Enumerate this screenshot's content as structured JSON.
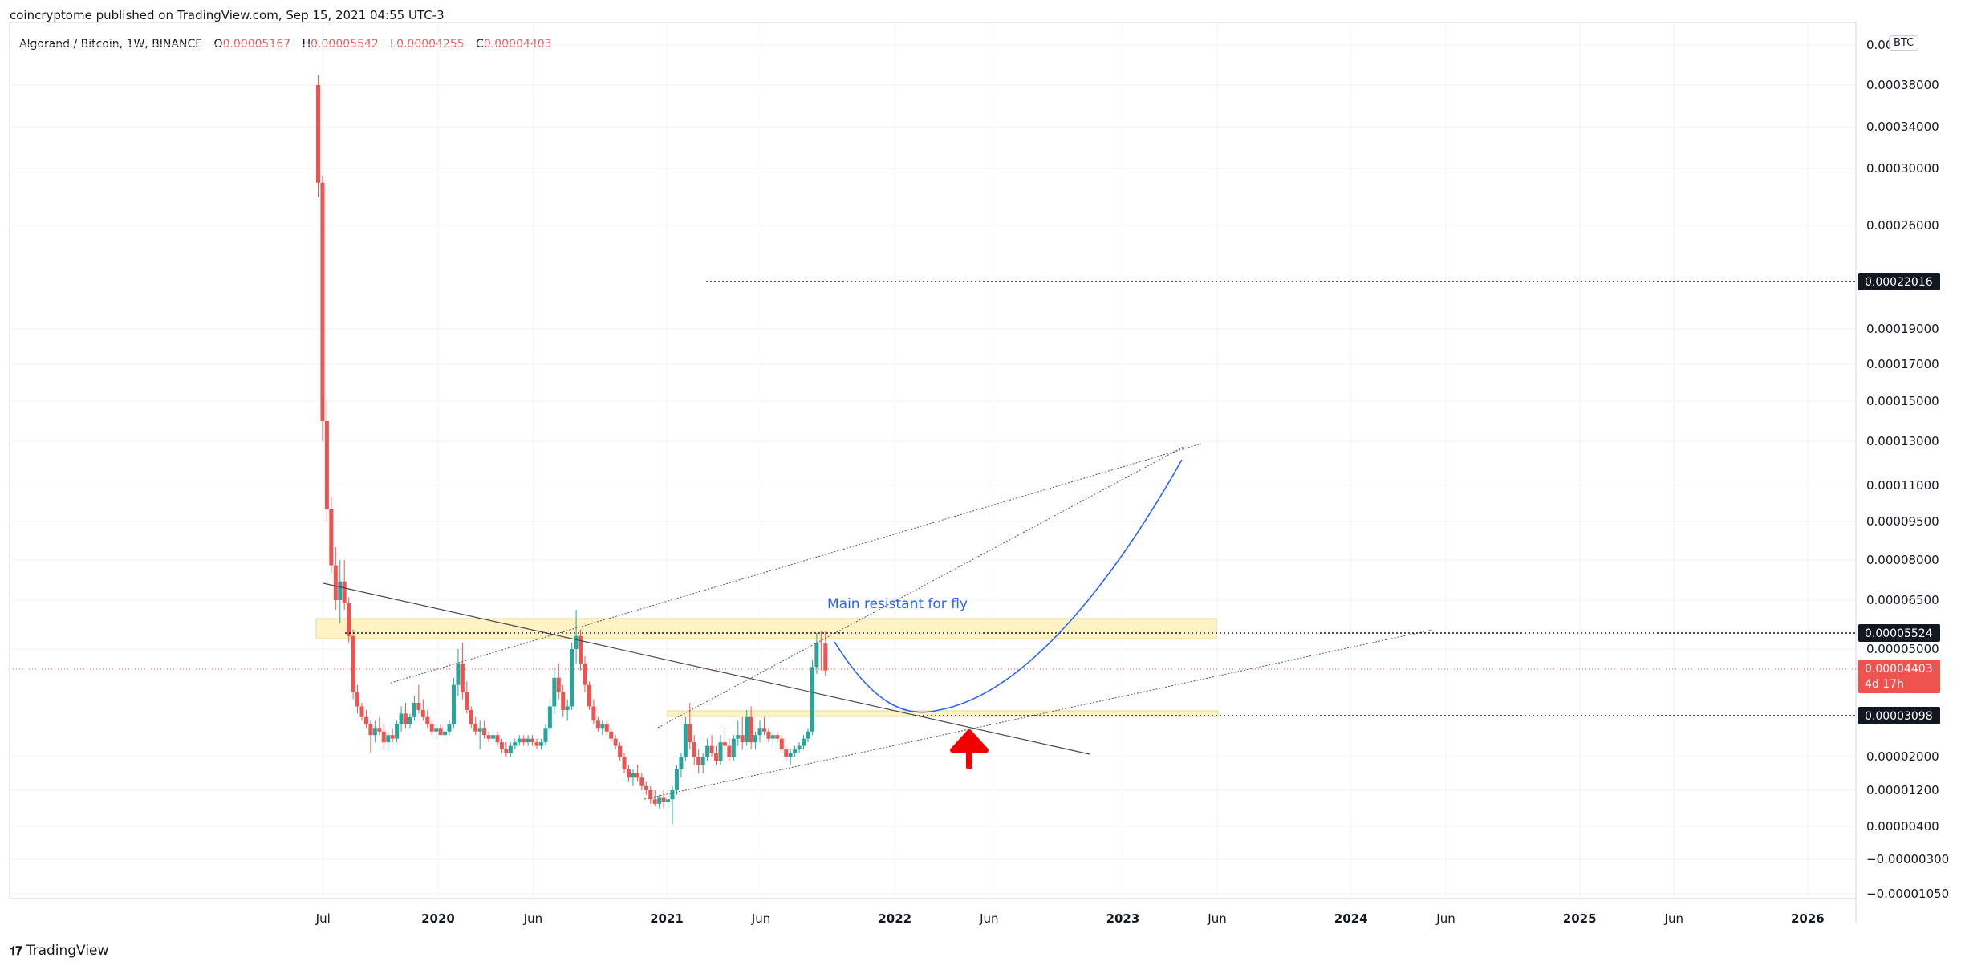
{
  "header": {
    "published": "coincryptome published on TradingView.com, Sep 15, 2021 04:55 UTC-3"
  },
  "legend": {
    "symbol": "Algorand / Bitcoin, 1W, BINANCE",
    "o_label": "O",
    "o": "0.00005167",
    "h_label": "H",
    "h": "0.00005542",
    "l_label": "L",
    "l": "0.00004255",
    "c_label": "C",
    "c": "0.00004403"
  },
  "currency_badge": "BTC",
  "footer": {
    "brand": "TradingView"
  },
  "colors": {
    "up": "#26a69a",
    "down": "#ef5350",
    "curve": "#2962ff",
    "zone": "#fff3c4",
    "arrow": "#f00000"
  },
  "chart_data": {
    "type": "candlestick",
    "symbol": "ALGO/BTC",
    "interval": "1W",
    "price_axis_labels": [
      "0.00042000",
      "0.00038000",
      "0.00034000",
      "0.00030000",
      "0.00026000",
      "0.00019000",
      "0.00017000",
      "0.00015000",
      "0.00013000",
      "0.00011000",
      "0.00009500",
      "0.00008000",
      "0.00006500",
      "0.00005000",
      "0.00002000",
      "0.00001200",
      "0.00000400",
      "−0.00000300",
      "−0.00001050"
    ],
    "price_axis_top_label": "0.0004",
    "time_axis_labels": [
      "Jul",
      "2020",
      "Jun",
      "2021",
      "Jun",
      "2022",
      "Jun",
      "2023",
      "Jun",
      "2024",
      "Jun",
      "2025",
      "Jun",
      "2026"
    ],
    "marked_levels": [
      {
        "value": "0.00022016"
      },
      {
        "value": "0.00005524"
      },
      {
        "value": "0.00003098"
      }
    ],
    "last_price": {
      "value": "0.00004403",
      "countdown": "4d 17h"
    },
    "annotation": "Main resistant for fly",
    "candles": [
      {
        "t": "2019-06-23",
        "o": 0.00038,
        "h": 0.00039,
        "l": 0.00028,
        "c": 0.00029
      },
      {
        "t": "2019-06-30",
        "o": 0.00029,
        "h": 0.000295,
        "l": 0.00013,
        "c": 0.00014
      },
      {
        "t": "2019-07-07",
        "o": 0.00014,
        "h": 0.00015,
        "l": 9.5e-05,
        "c": 0.0001
      },
      {
        "t": "2019-07-14",
        "o": 0.0001,
        "h": 0.000105,
        "l": 7.5e-05,
        "c": 7.8e-05
      },
      {
        "t": "2019-07-21",
        "o": 7.8e-05,
        "h": 8.5e-05,
        "l": 6.2e-05,
        "c": 6.5e-05
      },
      {
        "t": "2019-07-28",
        "o": 6.5e-05,
        "h": 8e-05,
        "l": 5.8e-05,
        "c": 7.2e-05
      },
      {
        "t": "2019-08-04",
        "o": 7.2e-05,
        "h": 8e-05,
        "l": 6.2e-05,
        "c": 6.4e-05
      },
      {
        "t": "2019-08-11",
        "o": 6.4e-05,
        "h": 6.6e-05,
        "l": 5.2e-05,
        "c": 5.4e-05
      },
      {
        "t": "2019-08-18",
        "o": 5.4e-05,
        "h": 5.6e-05,
        "l": 3.6e-05,
        "c": 3.8e-05
      },
      {
        "t": "2019-08-25",
        "o": 3.8e-05,
        "h": 4e-05,
        "l": 3.2e-05,
        "c": 3.4e-05
      },
      {
        "t": "2019-09-01",
        "o": 3.4e-05,
        "h": 3.5e-05,
        "l": 3e-05,
        "c": 3.1e-05
      },
      {
        "t": "2019-09-08",
        "o": 3.1e-05,
        "h": 3.3e-05,
        "l": 2.8e-05,
        "c": 2.9e-05
      },
      {
        "t": "2019-09-15",
        "o": 2.9e-05,
        "h": 3e-05,
        "l": 2.1e-05,
        "c": 2.6e-05
      },
      {
        "t": "2019-09-22",
        "o": 2.6e-05,
        "h": 3e-05,
        "l": 2.4e-05,
        "c": 2.8e-05
      },
      {
        "t": "2019-09-29",
        "o": 2.8e-05,
        "h": 3.1e-05,
        "l": 2.6e-05,
        "c": 2.7e-05
      },
      {
        "t": "2019-10-06",
        "o": 2.7e-05,
        "h": 2.9e-05,
        "l": 2.2e-05,
        "c": 2.4e-05
      },
      {
        "t": "2019-10-13",
        "o": 2.4e-05,
        "h": 2.7e-05,
        "l": 2.2e-05,
        "c": 2.6e-05
      },
      {
        "t": "2019-10-20",
        "o": 2.6e-05,
        "h": 2.8e-05,
        "l": 2.4e-05,
        "c": 2.5e-05
      },
      {
        "t": "2019-10-27",
        "o": 2.5e-05,
        "h": 3e-05,
        "l": 2.4e-05,
        "c": 2.9e-05
      },
      {
        "t": "2019-11-03",
        "o": 2.9e-05,
        "h": 3.4e-05,
        "l": 2.7e-05,
        "c": 3.2e-05
      },
      {
        "t": "2019-11-10",
        "o": 3.2e-05,
        "h": 3.5e-05,
        "l": 2.8e-05,
        "c": 2.9e-05
      },
      {
        "t": "2019-11-17",
        "o": 2.9e-05,
        "h": 3.2e-05,
        "l": 2.8e-05,
        "c": 3.1e-05
      },
      {
        "t": "2019-11-24",
        "o": 3.1e-05,
        "h": 3.7e-05,
        "l": 3e-05,
        "c": 3.5e-05
      },
      {
        "t": "2019-12-01",
        "o": 3.5e-05,
        "h": 4e-05,
        "l": 3.2e-05,
        "c": 3.3e-05
      },
      {
        "t": "2019-12-08",
        "o": 3.3e-05,
        "h": 3.6e-05,
        "l": 3e-05,
        "c": 3.1e-05
      },
      {
        "t": "2019-12-15",
        "o": 3.1e-05,
        "h": 3.3e-05,
        "l": 2.8e-05,
        "c": 2.9e-05
      },
      {
        "t": "2019-12-22",
        "o": 2.9e-05,
        "h": 3e-05,
        "l": 2.6e-05,
        "c": 2.7e-05
      },
      {
        "t": "2019-12-29",
        "o": 2.7e-05,
        "h": 2.9e-05,
        "l": 2.5e-05,
        "c": 2.8e-05
      },
      {
        "t": "2020-01-05",
        "o": 2.8e-05,
        "h": 2.9e-05,
        "l": 2.6e-05,
        "c": 2.6e-05
      },
      {
        "t": "2020-01-12",
        "o": 2.6e-05,
        "h": 2.8e-05,
        "l": 2.5e-05,
        "c": 2.7e-05
      },
      {
        "t": "2020-01-19",
        "o": 2.7e-05,
        "h": 3e-05,
        "l": 2.6e-05,
        "c": 2.9e-05
      },
      {
        "t": "2020-01-26",
        "o": 2.9e-05,
        "h": 4.2e-05,
        "l": 2.8e-05,
        "c": 4e-05
      },
      {
        "t": "2020-02-02",
        "o": 4e-05,
        "h": 5e-05,
        "l": 3.7e-05,
        "c": 4.6e-05
      },
      {
        "t": "2020-02-09",
        "o": 4.6e-05,
        "h": 5.2e-05,
        "l": 3.6e-05,
        "c": 3.8e-05
      },
      {
        "t": "2020-02-16",
        "o": 3.8e-05,
        "h": 4.1e-05,
        "l": 3.2e-05,
        "c": 3.3e-05
      },
      {
        "t": "2020-02-23",
        "o": 3.3e-05,
        "h": 3.4e-05,
        "l": 2.8e-05,
        "c": 2.9e-05
      },
      {
        "t": "2020-03-01",
        "o": 2.9e-05,
        "h": 3.1e-05,
        "l": 2.6e-05,
        "c": 2.7e-05
      },
      {
        "t": "2020-03-08",
        "o": 2.7e-05,
        "h": 3e-05,
        "l": 2.2e-05,
        "c": 2.8e-05
      },
      {
        "t": "2020-03-15",
        "o": 2.8e-05,
        "h": 3e-05,
        "l": 2.5e-05,
        "c": 2.6e-05
      },
      {
        "t": "2020-03-22",
        "o": 2.6e-05,
        "h": 2.7e-05,
        "l": 2.4e-05,
        "c": 2.5e-05
      },
      {
        "t": "2020-03-29",
        "o": 2.5e-05,
        "h": 2.7e-05,
        "l": 2.4e-05,
        "c": 2.6e-05
      },
      {
        "t": "2020-04-05",
        "o": 2.6e-05,
        "h": 2.7e-05,
        "l": 2.3e-05,
        "c": 2.4e-05
      },
      {
        "t": "2020-04-12",
        "o": 2.4e-05,
        "h": 2.5e-05,
        "l": 2.1e-05,
        "c": 2.2e-05
      },
      {
        "t": "2020-04-19",
        "o": 2.2e-05,
        "h": 2.4e-05,
        "l": 2e-05,
        "c": 2.1e-05
      },
      {
        "t": "2020-04-26",
        "o": 2.1e-05,
        "h": 2.4e-05,
        "l": 2e-05,
        "c": 2.3e-05
      },
      {
        "t": "2020-05-03",
        "o": 2.3e-05,
        "h": 2.5e-05,
        "l": 2.2e-05,
        "c": 2.4e-05
      },
      {
        "t": "2020-05-10",
        "o": 2.4e-05,
        "h": 2.6e-05,
        "l": 2.3e-05,
        "c": 2.5e-05
      },
      {
        "t": "2020-05-17",
        "o": 2.5e-05,
        "h": 2.6e-05,
        "l": 2.3e-05,
        "c": 2.4e-05
      },
      {
        "t": "2020-05-24",
        "o": 2.4e-05,
        "h": 2.6e-05,
        "l": 2.3e-05,
        "c": 2.5e-05
      },
      {
        "t": "2020-05-31",
        "o": 2.5e-05,
        "h": 2.6e-05,
        "l": 2.3e-05,
        "c": 2.4e-05
      },
      {
        "t": "2020-06-07",
        "o": 2.4e-05,
        "h": 2.5e-05,
        "l": 2.2e-05,
        "c": 2.3e-05
      },
      {
        "t": "2020-06-14",
        "o": 2.3e-05,
        "h": 2.5e-05,
        "l": 2.2e-05,
        "c": 2.4e-05
      },
      {
        "t": "2020-06-21",
        "o": 2.4e-05,
        "h": 2.9e-05,
        "l": 2.3e-05,
        "c": 2.8e-05
      },
      {
        "t": "2020-06-28",
        "o": 2.8e-05,
        "h": 3.6e-05,
        "l": 2.7e-05,
        "c": 3.4e-05
      },
      {
        "t": "2020-07-05",
        "o": 3.4e-05,
        "h": 4.5e-05,
        "l": 3.2e-05,
        "c": 4.2e-05
      },
      {
        "t": "2020-07-12",
        "o": 4.2e-05,
        "h": 4.6e-05,
        "l": 3.6e-05,
        "c": 3.8e-05
      },
      {
        "t": "2020-07-19",
        "o": 3.8e-05,
        "h": 4e-05,
        "l": 3.1e-05,
        "c": 3.3e-05
      },
      {
        "t": "2020-07-26",
        "o": 3.3e-05,
        "h": 3.6e-05,
        "l": 3e-05,
        "c": 3.4e-05
      },
      {
        "t": "2020-08-02",
        "o": 3.4e-05,
        "h": 5.2e-05,
        "l": 3.3e-05,
        "c": 5e-05
      },
      {
        "t": "2020-08-09",
        "o": 5e-05,
        "h": 6.2e-05,
        "l": 4.6e-05,
        "c": 5.4e-05
      },
      {
        "t": "2020-08-16",
        "o": 5.4e-05,
        "h": 5.6e-05,
        "l": 4.4e-05,
        "c": 4.6e-05
      },
      {
        "t": "2020-08-23",
        "o": 4.6e-05,
        "h": 4.8e-05,
        "l": 3.8e-05,
        "c": 4e-05
      },
      {
        "t": "2020-08-30",
        "o": 4e-05,
        "h": 4.1e-05,
        "l": 3.3e-05,
        "c": 3.4e-05
      },
      {
        "t": "2020-09-06",
        "o": 3.4e-05,
        "h": 3.6e-05,
        "l": 2.9e-05,
        "c": 3e-05
      },
      {
        "t": "2020-09-13",
        "o": 3e-05,
        "h": 3.1e-05,
        "l": 2.7e-05,
        "c": 2.8e-05
      },
      {
        "t": "2020-09-20",
        "o": 2.8e-05,
        "h": 3e-05,
        "l": 2.6e-05,
        "c": 2.9e-05
      },
      {
        "t": "2020-09-27",
        "o": 2.9e-05,
        "h": 3e-05,
        "l": 2.6e-05,
        "c": 2.7e-05
      },
      {
        "t": "2020-10-04",
        "o": 2.7e-05,
        "h": 2.8e-05,
        "l": 2.4e-05,
        "c": 2.5e-05
      },
      {
        "t": "2020-10-11",
        "o": 2.5e-05,
        "h": 2.6e-05,
        "l": 2.2e-05,
        "c": 2.3e-05
      },
      {
        "t": "2020-10-18",
        "o": 2.3e-05,
        "h": 2.4e-05,
        "l": 1.9e-05,
        "c": 2e-05
      },
      {
        "t": "2020-10-25",
        "o": 2e-05,
        "h": 2.1e-05,
        "l": 1.6e-05,
        "c": 1.7e-05
      },
      {
        "t": "2020-11-01",
        "o": 1.7e-05,
        "h": 1.8e-05,
        "l": 1.4e-05,
        "c": 1.5e-05
      },
      {
        "t": "2020-11-08",
        "o": 1.5e-05,
        "h": 1.7e-05,
        "l": 1.3e-05,
        "c": 1.6e-05
      },
      {
        "t": "2020-11-15",
        "o": 1.6e-05,
        "h": 1.8e-05,
        "l": 1.4e-05,
        "c": 1.5e-05
      },
      {
        "t": "2020-11-22",
        "o": 1.5e-05,
        "h": 1.6e-05,
        "l": 1.2e-05,
        "c": 1.3e-05
      },
      {
        "t": "2020-11-29",
        "o": 1.3e-05,
        "h": 1.4e-05,
        "l": 1.1e-05,
        "c": 1.2e-05
      },
      {
        "t": "2020-12-06",
        "o": 1.2e-05,
        "h": 1.3e-05,
        "l": 9e-06,
        "c": 1e-05
      },
      {
        "t": "2020-12-13",
        "o": 1e-05,
        "h": 1.2e-05,
        "l": 8.5e-06,
        "c": 9e-06
      },
      {
        "t": "2020-12-20",
        "o": 9e-06,
        "h": 1.1e-05,
        "l": 8e-06,
        "c": 1.05e-05
      },
      {
        "t": "2020-12-27",
        "o": 1.05e-05,
        "h": 1.2e-05,
        "l": 8e-06,
        "c": 9.5e-06
      },
      {
        "t": "2021-01-03",
        "o": 9.5e-06,
        "h": 1.1e-05,
        "l": 8e-06,
        "c": 1e-05
      },
      {
        "t": "2021-01-10",
        "o": 1e-05,
        "h": 1.3e-05,
        "l": 4.5e-06,
        "c": 1.2e-05
      },
      {
        "t": "2021-01-17",
        "o": 1.2e-05,
        "h": 1.8e-05,
        "l": 1.1e-05,
        "c": 1.7e-05
      },
      {
        "t": "2021-01-24",
        "o": 1.7e-05,
        "h": 2.1e-05,
        "l": 1.5e-05,
        "c": 2e-05
      },
      {
        "t": "2021-01-31",
        "o": 2e-05,
        "h": 3.1e-05,
        "l": 1.9e-05,
        "c": 2.9e-05
      },
      {
        "t": "2021-02-07",
        "o": 2.9e-05,
        "h": 3.5e-05,
        "l": 2.2e-05,
        "c": 2.4e-05
      },
      {
        "t": "2021-02-14",
        "o": 2.4e-05,
        "h": 2.6e-05,
        "l": 1.8e-05,
        "c": 2e-05
      },
      {
        "t": "2021-02-21",
        "o": 2e-05,
        "h": 2.2e-05,
        "l": 1.6e-05,
        "c": 1.8e-05
      },
      {
        "t": "2021-02-28",
        "o": 1.8e-05,
        "h": 2.1e-05,
        "l": 1.6e-05,
        "c": 2e-05
      },
      {
        "t": "2021-03-07",
        "o": 2e-05,
        "h": 2.5e-05,
        "l": 1.9e-05,
        "c": 2.3e-05
      },
      {
        "t": "2021-03-14",
        "o": 2.3e-05,
        "h": 2.6e-05,
        "l": 2e-05,
        "c": 2.1e-05
      },
      {
        "t": "2021-03-21",
        "o": 2.1e-05,
        "h": 2.3e-05,
        "l": 1.8e-05,
        "c": 1.9e-05
      },
      {
        "t": "2021-03-28",
        "o": 1.9e-05,
        "h": 2.6e-05,
        "l": 1.8e-05,
        "c": 2.4e-05
      },
      {
        "t": "2021-04-04",
        "o": 2.4e-05,
        "h": 2.8e-05,
        "l": 2.2e-05,
        "c": 2.3e-05
      },
      {
        "t": "2021-04-11",
        "o": 2.3e-05,
        "h": 2.5e-05,
        "l": 1.9e-05,
        "c": 2e-05
      },
      {
        "t": "2021-04-18",
        "o": 2e-05,
        "h": 2.6e-05,
        "l": 1.9e-05,
        "c": 2.5e-05
      },
      {
        "t": "2021-04-25",
        "o": 2.5e-05,
        "h": 3e-05,
        "l": 2.3e-05,
        "c": 2.6e-05
      },
      {
        "t": "2021-05-02",
        "o": 2.6e-05,
        "h": 3.1e-05,
        "l": 2.2e-05,
        "c": 2.4e-05
      },
      {
        "t": "2021-05-09",
        "o": 2.4e-05,
        "h": 3.3e-05,
        "l": 2.3e-05,
        "c": 3.1e-05
      },
      {
        "t": "2021-05-16",
        "o": 3.1e-05,
        "h": 3.4e-05,
        "l": 2.2e-05,
        "c": 2.4e-05
      },
      {
        "t": "2021-05-23",
        "o": 2.4e-05,
        "h": 2.7e-05,
        "l": 2.2e-05,
        "c": 2.6e-05
      },
      {
        "t": "2021-05-30",
        "o": 2.6e-05,
        "h": 3e-05,
        "l": 2.4e-05,
        "c": 2.8e-05
      },
      {
        "t": "2021-06-06",
        "o": 2.8e-05,
        "h": 3.1e-05,
        "l": 2.6e-05,
        "c": 2.7e-05
      },
      {
        "t": "2021-06-13",
        "o": 2.7e-05,
        "h": 2.8e-05,
        "l": 2.4e-05,
        "c": 2.5e-05
      },
      {
        "t": "2021-06-20",
        "o": 2.5e-05,
        "h": 2.7e-05,
        "l": 2.3e-05,
        "c": 2.6e-05
      },
      {
        "t": "2021-06-27",
        "o": 2.6e-05,
        "h": 2.7e-05,
        "l": 2.4e-05,
        "c": 2.5e-05
      },
      {
        "t": "2021-07-04",
        "o": 2.5e-05,
        "h": 2.6e-05,
        "l": 2.1e-05,
        "c": 2.2e-05
      },
      {
        "t": "2021-07-11",
        "o": 2.2e-05,
        "h": 2.3e-05,
        "l": 1.9e-05,
        "c": 2e-05
      },
      {
        "t": "2021-07-18",
        "o": 2e-05,
        "h": 2.2e-05,
        "l": 1.8e-05,
        "c": 2.1e-05
      },
      {
        "t": "2021-07-25",
        "o": 2.1e-05,
        "h": 2.3e-05,
        "l": 2e-05,
        "c": 2.2e-05
      },
      {
        "t": "2021-08-01",
        "o": 2.2e-05,
        "h": 2.4e-05,
        "l": 2.1e-05,
        "c": 2.3e-05
      },
      {
        "t": "2021-08-08",
        "o": 2.3e-05,
        "h": 2.6e-05,
        "l": 2.2e-05,
        "c": 2.5e-05
      },
      {
        "t": "2021-08-15",
        "o": 2.5e-05,
        "h": 2.8e-05,
        "l": 2.4e-05,
        "c": 2.7e-05
      },
      {
        "t": "2021-08-22",
        "o": 2.7e-05,
        "h": 4.7e-05,
        "l": 2.6e-05,
        "c": 4.5e-05
      },
      {
        "t": "2021-08-29",
        "o": 4.5e-05,
        "h": 5.5e-05,
        "l": 4.3e-05,
        "c": 5.2e-05
      },
      {
        "t": "2021-09-05",
        "o": 5.2e-05,
        "h": 5.55e-05,
        "l": 4.4e-05,
        "c": 5.17e-05
      },
      {
        "t": "2021-09-12",
        "o": 5.167e-05,
        "h": 5.542e-05,
        "l": 4.255e-05,
        "c": 4.403e-05
      }
    ]
  }
}
